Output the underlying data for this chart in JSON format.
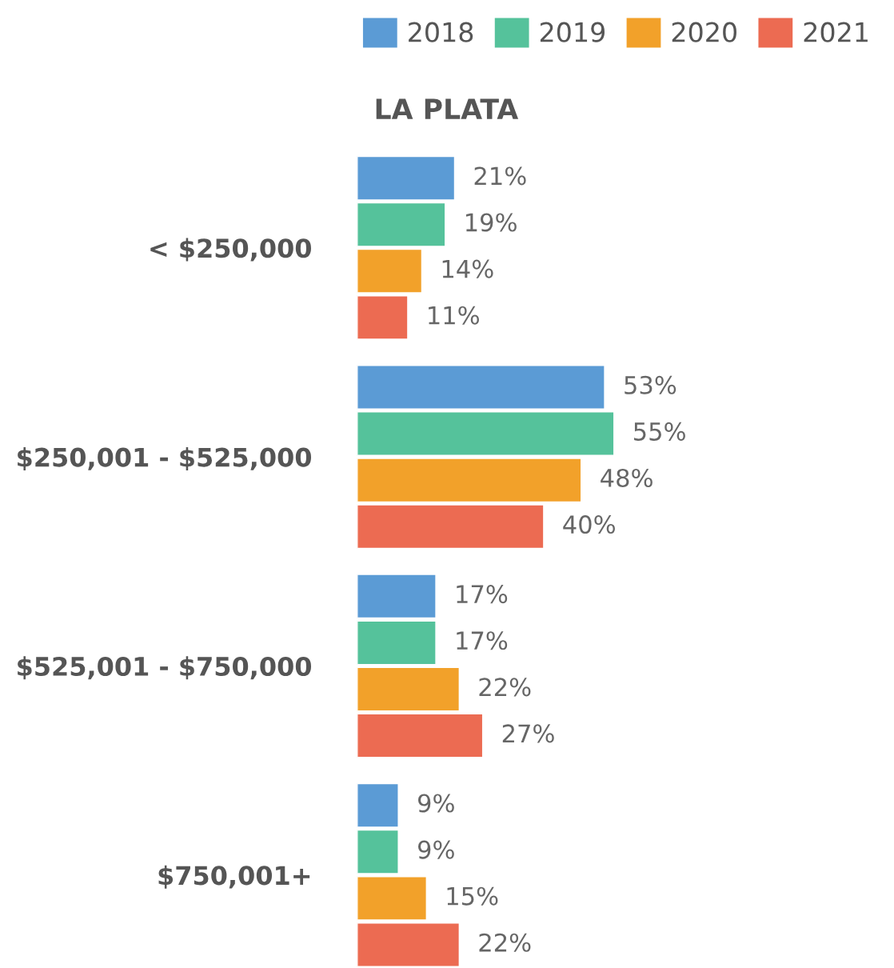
{
  "chart_data": {
    "type": "bar",
    "orientation": "horizontal",
    "title": "LA PLATA",
    "categories": [
      "< $250,000",
      "$250,001 - $525,000",
      "$525,001 - $750,000",
      "$750,001+"
    ],
    "series": [
      {
        "name": "2018",
        "color": "#5b9bd5",
        "values": [
          21,
          53,
          17,
          9
        ],
        "value_labels": [
          "21%",
          "53%",
          "17%",
          "9%"
        ]
      },
      {
        "name": "2019",
        "color": "#55c29b",
        "values": [
          19,
          55,
          17,
          9
        ],
        "value_labels": [
          "19%",
          "55%",
          "17%",
          "9%"
        ]
      },
      {
        "name": "2020",
        "color": "#f2a12a",
        "values": [
          14,
          48,
          22,
          15
        ],
        "value_labels": [
          "14%",
          "48%",
          "22%",
          "15%"
        ]
      },
      {
        "name": "2021",
        "color": "#ec6b52",
        "values": [
          11,
          40,
          27,
          22
        ],
        "value_labels": [
          "11%",
          "40%",
          "27%",
          "22%"
        ]
      }
    ],
    "legend": "top right",
    "grid": false,
    "tick_labels": "y"
  }
}
